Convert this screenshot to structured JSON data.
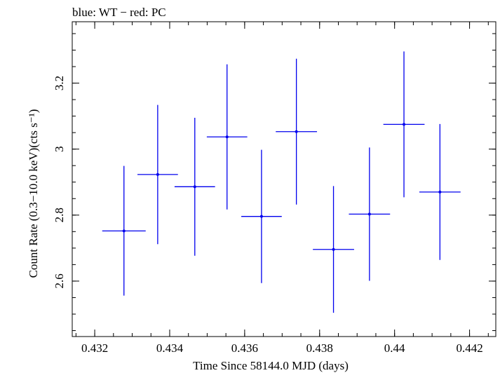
{
  "chart_data": {
    "type": "scatter",
    "title": "blue: WT − red: PC",
    "xlabel": "Time Since 58144.0 MJD (days)",
    "ylabel": "Count Rate (0.3−10.0 keV)(cts s⁻¹)",
    "xlim": [
      0.4314,
      0.4427
    ],
    "ylim": [
      2.432,
      3.386
    ],
    "x_ticks": [
      {
        "value": 0.432,
        "label": "0.432"
      },
      {
        "value": 0.434,
        "label": "0.434"
      },
      {
        "value": 0.436,
        "label": "0.436"
      },
      {
        "value": 0.438,
        "label": "0.438"
      },
      {
        "value": 0.44,
        "label": "0.44"
      },
      {
        "value": 0.442,
        "label": "0.442"
      }
    ],
    "y_ticks": [
      {
        "value": 2.6,
        "label": "2.6"
      },
      {
        "value": 2.8,
        "label": "2.8"
      },
      {
        "value": 3.0,
        "label": "3"
      },
      {
        "value": 3.2,
        "label": "3.2"
      }
    ],
    "x_minor_step": 0.0005,
    "y_minor_step": 0.05,
    "series": [
      {
        "color": "#0000ee",
        "points": [
          {
            "x": 0.43278,
            "y": 2.752,
            "xerr": 0.00058,
            "yerr_lo": 0.196,
            "yerr_hi": 0.197
          },
          {
            "x": 0.43368,
            "y": 2.923,
            "xerr": 0.00054,
            "yerr_lo": 0.211,
            "yerr_hi": 0.211
          },
          {
            "x": 0.43467,
            "y": 2.886,
            "xerr": 0.00054,
            "yerr_lo": 0.209,
            "yerr_hi": 0.209
          },
          {
            "x": 0.43553,
            "y": 3.037,
            "xerr": 0.00054,
            "yerr_lo": 0.22,
            "yerr_hi": 0.22
          },
          {
            "x": 0.43645,
            "y": 2.796,
            "xerr": 0.00054,
            "yerr_lo": 0.202,
            "yerr_hi": 0.202
          },
          {
            "x": 0.43738,
            "y": 3.053,
            "xerr": 0.00055,
            "yerr_lo": 0.221,
            "yerr_hi": 0.221
          },
          {
            "x": 0.43837,
            "y": 2.696,
            "xerr": 0.00055,
            "yerr_lo": 0.192,
            "yerr_hi": 0.192
          },
          {
            "x": 0.43933,
            "y": 2.803,
            "xerr": 0.00055,
            "yerr_lo": 0.202,
            "yerr_hi": 0.202
          },
          {
            "x": 0.44025,
            "y": 3.075,
            "xerr": 0.00055,
            "yerr_lo": 0.221,
            "yerr_hi": 0.221
          },
          {
            "x": 0.44121,
            "y": 2.87,
            "xerr": 0.00055,
            "yerr_lo": 0.206,
            "yerr_hi": 0.206
          }
        ]
      }
    ]
  }
}
